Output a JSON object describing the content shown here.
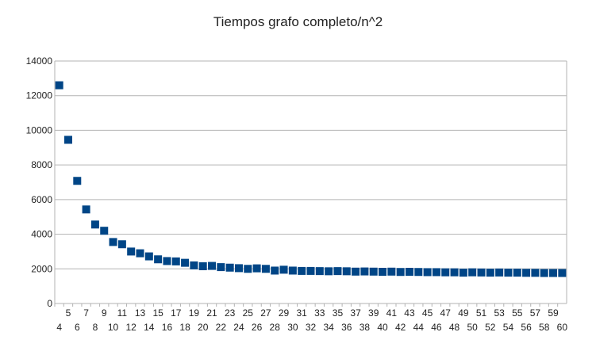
{
  "chart_data": {
    "type": "scatter",
    "title": "Tiempos grafo completo/n^2",
    "xlabel": "",
    "ylabel": "",
    "xlim": [
      3.5,
      60.5
    ],
    "ylim": [
      0,
      14000
    ],
    "yticks": [
      0,
      2000,
      4000,
      6000,
      8000,
      10000,
      12000,
      14000
    ],
    "grid": true,
    "legend": "none",
    "marker": "square",
    "color": "#004586",
    "x": [
      4,
      5,
      6,
      7,
      8,
      9,
      10,
      11,
      12,
      13,
      14,
      15,
      16,
      17,
      18,
      19,
      20,
      21,
      22,
      23,
      24,
      25,
      26,
      27,
      28,
      29,
      30,
      31,
      32,
      33,
      34,
      35,
      36,
      37,
      38,
      39,
      40,
      41,
      42,
      43,
      44,
      45,
      46,
      47,
      48,
      49,
      50,
      51,
      52,
      53,
      54,
      55,
      56,
      57,
      58,
      59,
      60
    ],
    "values": [
      12600,
      9450,
      7080,
      5430,
      4560,
      4200,
      3550,
      3420,
      3000,
      2900,
      2720,
      2550,
      2450,
      2430,
      2350,
      2200,
      2150,
      2170,
      2100,
      2070,
      2040,
      2000,
      2030,
      2000,
      1900,
      1950,
      1900,
      1880,
      1880,
      1870,
      1860,
      1870,
      1860,
      1840,
      1850,
      1840,
      1830,
      1840,
      1820,
      1830,
      1820,
      1810,
      1810,
      1800,
      1800,
      1780,
      1800,
      1790,
      1780,
      1790,
      1780,
      1780,
      1770,
      1770,
      1760,
      1760,
      1760
    ]
  }
}
